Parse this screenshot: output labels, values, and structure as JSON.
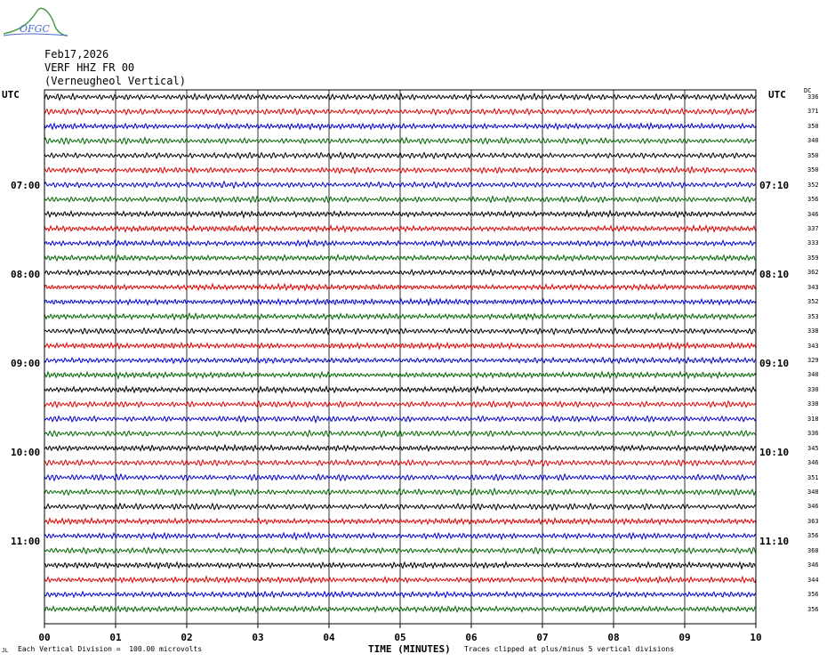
{
  "logo": {
    "text": "OFGC",
    "icon": "ofgc-logo-icon"
  },
  "header": {
    "date": "Feb17,2026",
    "station": "VERF HHZ FR 00",
    "location": "(Verneugheol Vertical)"
  },
  "utc_left": "UTC",
  "utc_right": "UTC",
  "dc_label": "DC",
  "time_labels_left": [
    "07:00",
    "08:00",
    "09:00",
    "10:00",
    "11:00"
  ],
  "time_labels_right": [
    "07:10",
    "08:10",
    "09:10",
    "10:10",
    "11:10"
  ],
  "footer": {
    "left": "Each Vertical Division =  100.00 microvolts",
    "center": "TIME (MINUTES)",
    "right": "Traces clipped at plus/minus 5 vertical divisions",
    "mark": "JL"
  },
  "chart_data": {
    "type": "line",
    "title": "VERF HHZ FR 00",
    "xlabel": "TIME (MINUTES)",
    "ylabel": "UTC",
    "xlim": [
      0,
      10
    ],
    "x_ticks": [
      "00",
      "01",
      "02",
      "03",
      "04",
      "05",
      "06",
      "07",
      "08",
      "09",
      "10"
    ],
    "grid": true,
    "trace_colors": [
      "#000000",
      "#dd0000",
      "#0000cc",
      "#006600"
    ],
    "trace_count": 36,
    "dc_offsets": [
      336,
      371,
      350,
      340,
      350,
      350,
      352,
      356,
      346,
      337,
      333,
      359,
      362,
      343,
      352,
      353,
      338,
      343,
      329,
      340,
      330,
      338,
      318,
      336,
      345,
      346,
      351,
      348,
      346,
      363,
      356,
      360,
      346,
      344,
      356,
      356
    ]
  }
}
